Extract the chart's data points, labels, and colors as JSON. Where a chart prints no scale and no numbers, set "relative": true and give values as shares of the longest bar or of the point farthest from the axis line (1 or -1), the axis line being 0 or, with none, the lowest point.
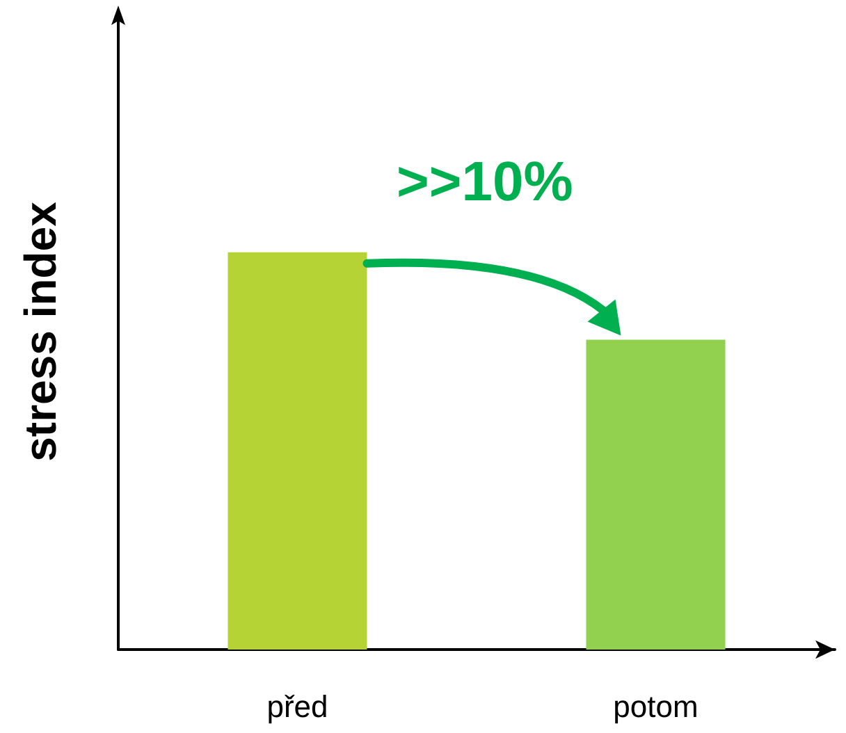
{
  "chart_data": {
    "type": "bar",
    "relative": true,
    "ylabel": "stress index",
    "categories": [
      "před",
      "potom"
    ],
    "values": [
      1,
      0.78
    ],
    "colors": [
      "#b5d334",
      "#92d050"
    ],
    "annotations": [
      ">>10%"
    ],
    "grid": false
  }
}
